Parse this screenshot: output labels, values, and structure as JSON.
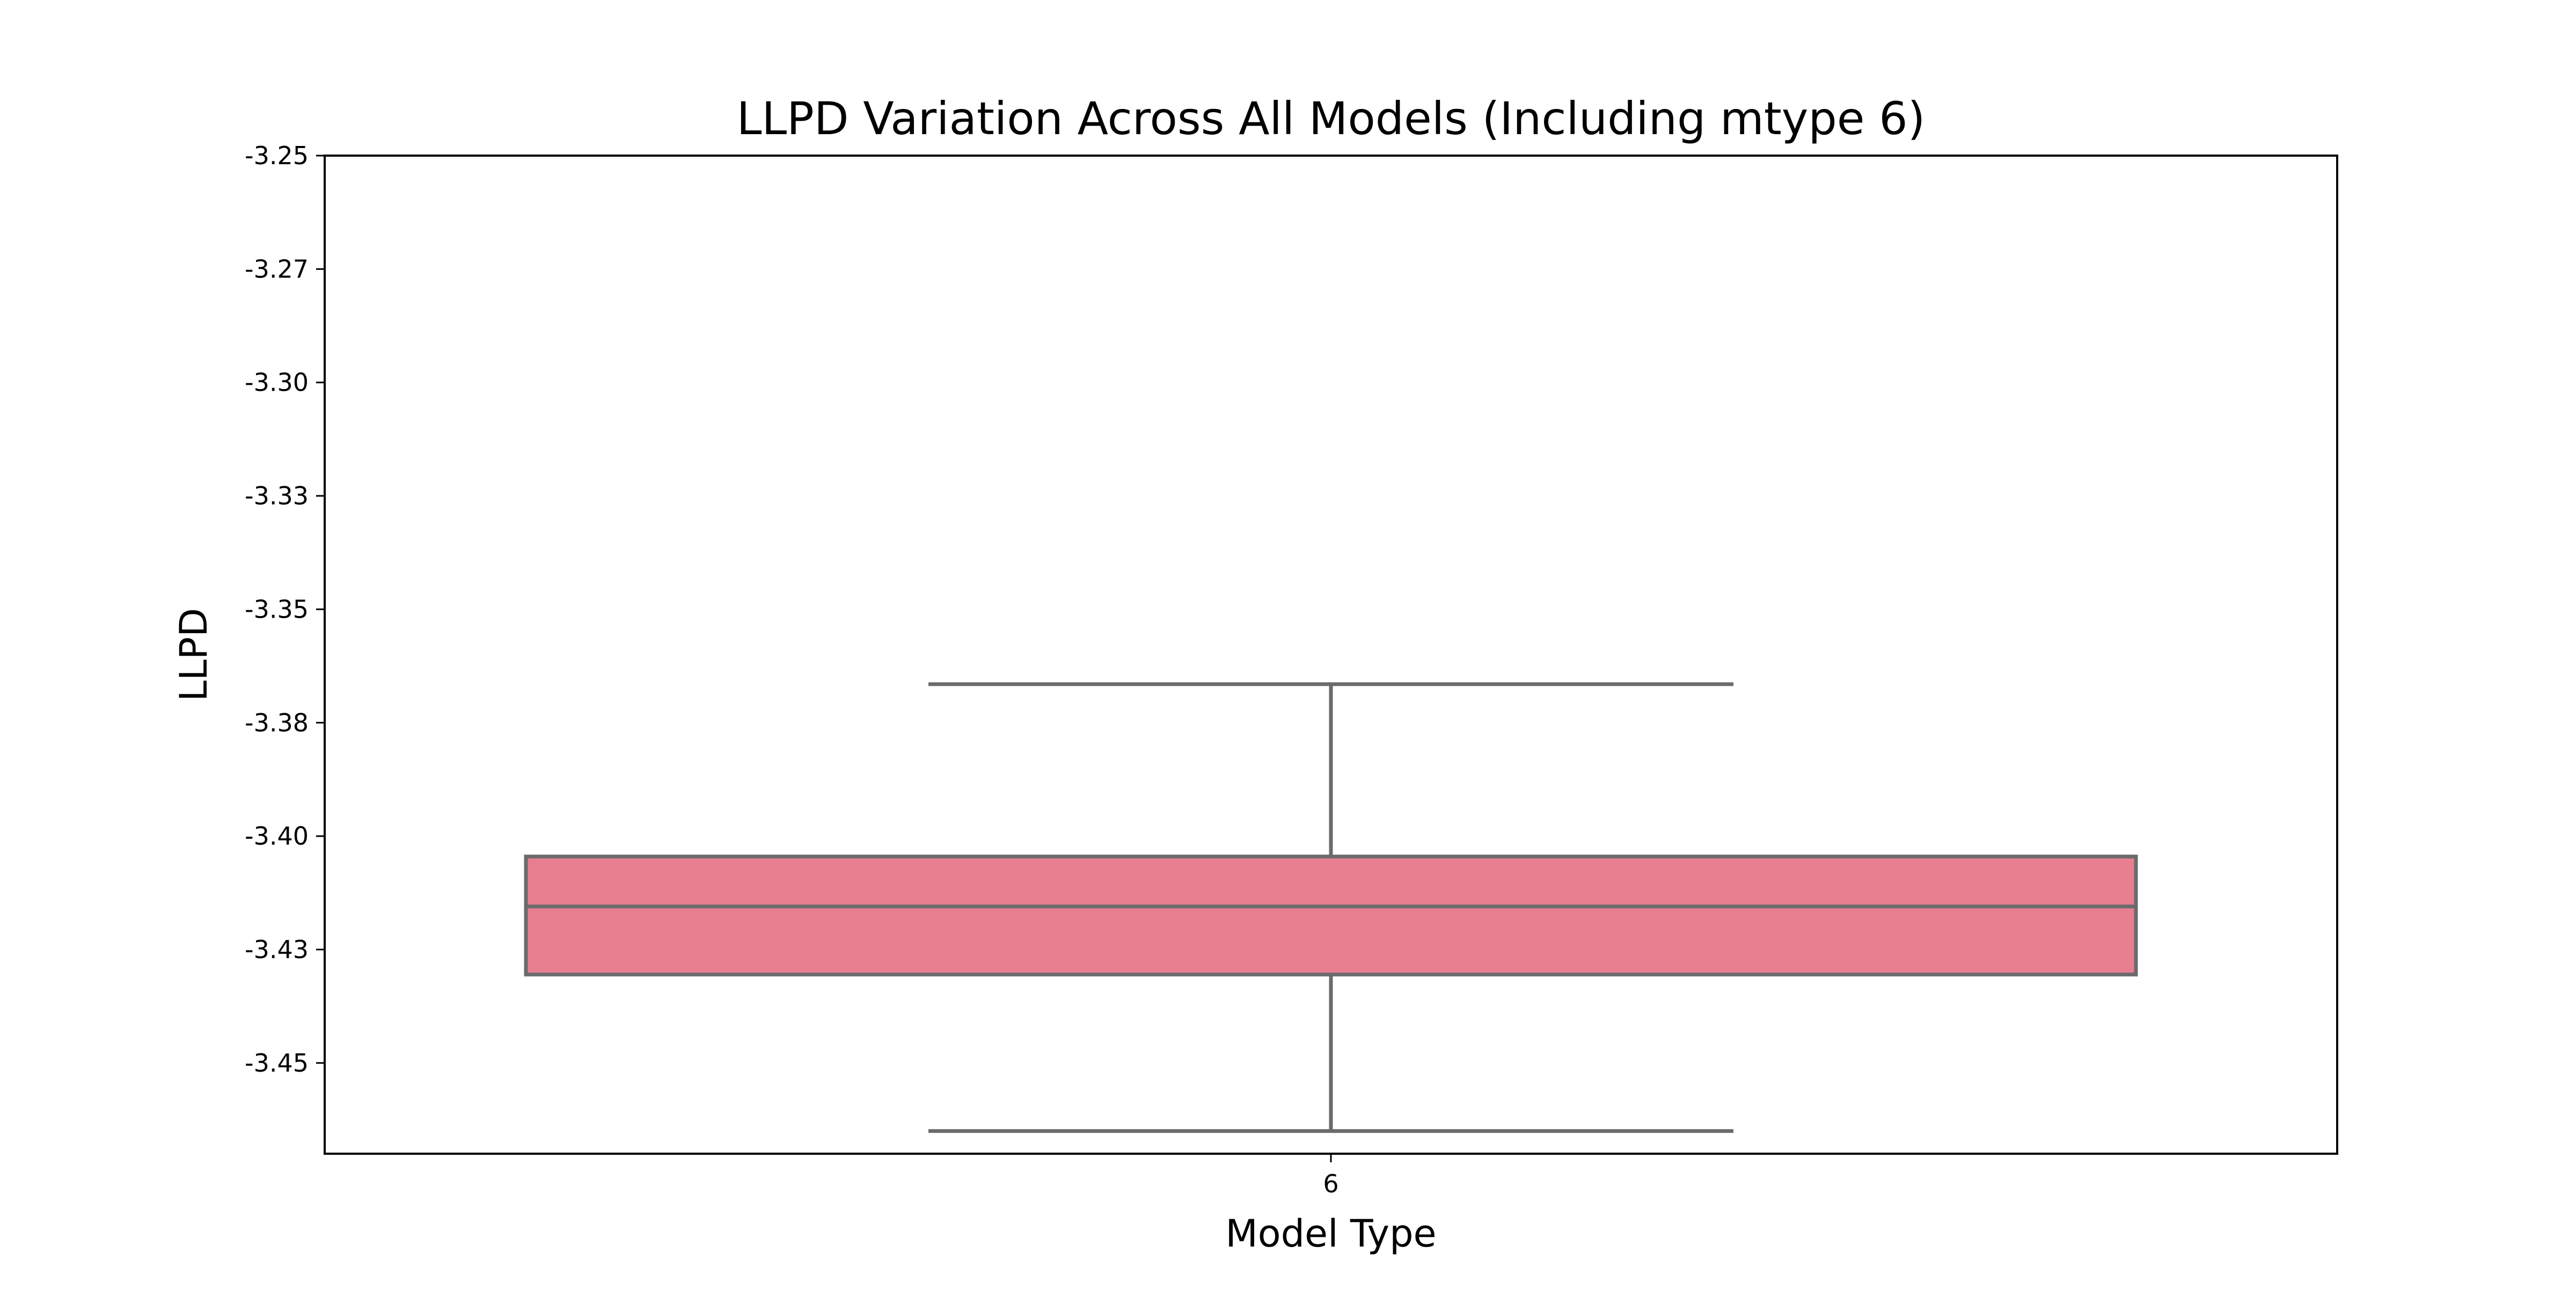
{
  "chart_data": {
    "type": "box",
    "title": "LLPD Variation Across All Models (Including mtype 6)",
    "xlabel": "Model Type",
    "ylabel": "LLPD",
    "categories": [
      "6"
    ],
    "ylim": [
      -3.47,
      -3.25
    ],
    "yticks": [
      -3.25,
      -3.275,
      -3.3,
      -3.325,
      -3.35,
      -3.375,
      -3.4,
      -3.425,
      -3.45
    ],
    "ytick_labels": [
      "-3.25",
      "-3.27",
      "-3.30",
      "-3.33",
      "-3.35",
      "-3.38",
      "-3.40",
      "-3.43",
      "-3.45"
    ],
    "boxes": [
      {
        "category": "6",
        "whisker_low": -3.465,
        "q1": -3.4305,
        "median": -3.4155,
        "q3": -3.4045,
        "whisker_high": -3.3665
      }
    ],
    "grid": false,
    "box_color": "#e77f91",
    "line_color": "#6b6b6b"
  }
}
